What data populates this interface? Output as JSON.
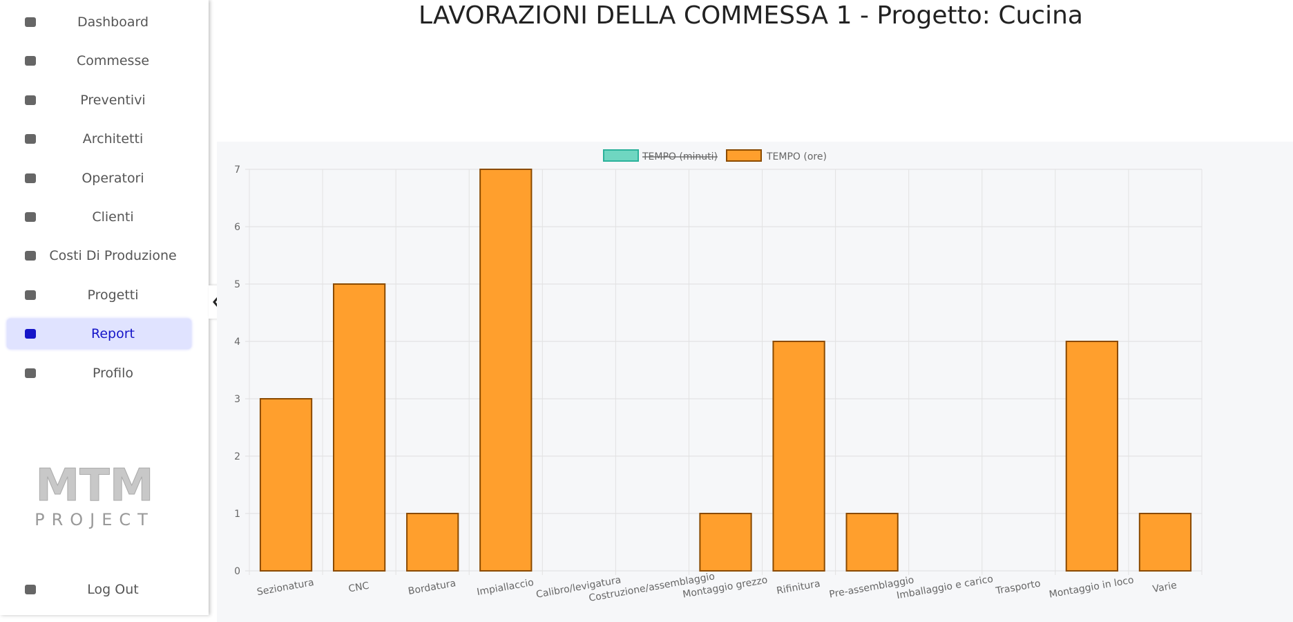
{
  "nav": {
    "items": [
      "Dashboard",
      "Commesse",
      "Preventivi",
      "Architetti",
      "Operatori",
      "Clienti",
      "Costi Di Produzione",
      "Progetti",
      "Report",
      "Profilo"
    ],
    "active": "Report",
    "logout": "Log Out"
  },
  "logo": {
    "title": "MTM",
    "subtitle": "PROJECT"
  },
  "chart_data": {
    "type": "bar",
    "title": "LAVORAZIONI DELLA COMMESSA 1 - Progetto: Cucina",
    "categories": [
      "Sezionatura",
      "CNC",
      "Bordatura",
      "Impiallaccio",
      "Calibro/levigatura",
      "Costruzione/assemblaggio",
      "Montaggio grezzo",
      "Rifinitura",
      "Pre-assemblaggio",
      "Imballaggio e carico",
      "Trasporto",
      "Montaggio in loco",
      "Varie"
    ],
    "series": [
      {
        "name": "TEMPO (ore)",
        "color": "#ff9f2d",
        "values": [
          3,
          5,
          1,
          7,
          0,
          0,
          1,
          4,
          1,
          0,
          0,
          4,
          1
        ]
      }
    ],
    "hidden_series": [
      {
        "name": "TEMPO (minuti)",
        "color": "#6fd6c1"
      }
    ],
    "ylim": [
      0,
      7
    ],
    "yticks": [
      0,
      1,
      2,
      3,
      4,
      5,
      6,
      7
    ],
    "grid": true
  }
}
